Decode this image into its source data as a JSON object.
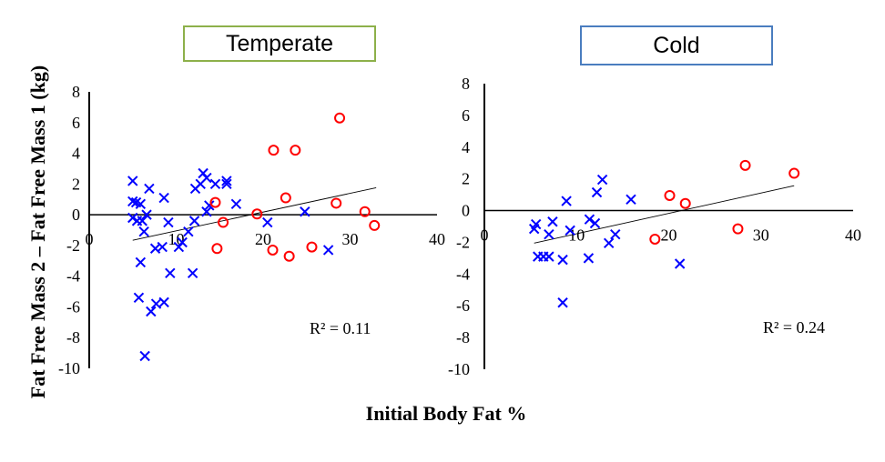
{
  "chart_data": {
    "type": "scatter",
    "ylabel": "Fat Free Mass 2 – Fat Free Mass 1 (kg)",
    "xlabel": "Initial Body Fat %",
    "colors": {
      "series_x": "#0000ff",
      "series_o": "#ff0000",
      "temperate_border": "#8db04a",
      "cold_border": "#4a7dbf"
    },
    "panels": [
      {
        "title": "Temperate",
        "xlim": [
          0,
          40
        ],
        "ylim": [
          -10,
          8
        ],
        "xticks": [
          0,
          10,
          20,
          30,
          40
        ],
        "yticks": [
          8,
          6,
          4,
          2,
          0,
          -2,
          -4,
          -6,
          -8,
          -10
        ],
        "r2_label": "R² = 0.11",
        "trendline": [
          [
            5.0,
            -1.66
          ],
          [
            33.0,
            1.76
          ]
        ],
        "series": [
          {
            "name": "x-markers",
            "marker": "x",
            "points": [
              [
                5.0,
                2.2
              ],
              [
                5.0,
                0.87
              ],
              [
                5.4,
                0.8
              ],
              [
                5.9,
                0.7
              ],
              [
                5.0,
                -0.2
              ],
              [
                5.5,
                -0.4
              ],
              [
                6.1,
                -0.4
              ],
              [
                6.6,
                0.0
              ],
              [
                6.9,
                1.7
              ],
              [
                6.3,
                -1.1
              ],
              [
                8.6,
                1.1
              ],
              [
                9.1,
                -0.5
              ],
              [
                5.9,
                -3.1
              ],
              [
                7.6,
                -2.2
              ],
              [
                8.4,
                -2.1
              ],
              [
                9.3,
                -3.8
              ],
              [
                10.3,
                -2.1
              ],
              [
                10.7,
                -1.8
              ],
              [
                11.4,
                -1.1
              ],
              [
                12.1,
                -0.4
              ],
              [
                11.9,
                -3.8
              ],
              [
                12.2,
                1.7
              ],
              [
                12.8,
                2.0
              ],
              [
                13.1,
                2.7
              ],
              [
                13.5,
                2.4
              ],
              [
                14.5,
                2.0
              ],
              [
                15.8,
                2.2
              ],
              [
                15.8,
                2.0
              ],
              [
                13.5,
                0.2
              ],
              [
                13.8,
                0.6
              ],
              [
                16.9,
                0.7
              ],
              [
                5.7,
                -5.4
              ],
              [
                7.1,
                -6.3
              ],
              [
                7.7,
                -5.8
              ],
              [
                8.6,
                -5.7
              ],
              [
                6.4,
                -9.2
              ],
              [
                20.5,
                -0.5
              ],
              [
                24.8,
                0.2
              ],
              [
                27.5,
                -2.3
              ]
            ]
          },
          {
            "name": "o-markers",
            "marker": "o",
            "points": [
              [
                28.8,
                6.3
              ],
              [
                21.2,
                4.2
              ],
              [
                23.7,
                4.2
              ],
              [
                22.6,
                1.1
              ],
              [
                28.4,
                0.75
              ],
              [
                31.7,
                0.2
              ],
              [
                32.8,
                -0.7
              ],
              [
                14.5,
                0.8
              ],
              [
                15.4,
                -0.5
              ],
              [
                14.7,
                -2.2
              ],
              [
                19.3,
                0.05
              ],
              [
                21.1,
                -2.3
              ],
              [
                23.0,
                -2.7
              ],
              [
                25.6,
                -2.1
              ]
            ]
          }
        ]
      },
      {
        "title": "Cold",
        "xlim": [
          0,
          40
        ],
        "ylim": [
          -10,
          8
        ],
        "xticks": [
          0,
          10,
          20,
          30,
          40
        ],
        "yticks": [
          8,
          6,
          4,
          2,
          0,
          -2,
          -4,
          -6,
          -8,
          -10
        ],
        "r2_label": "R² = 0.24",
        "trendline": [
          [
            5.4,
            -2.05
          ],
          [
            33.6,
            1.57
          ]
        ],
        "series": [
          {
            "name": "x-markers",
            "marker": "x",
            "points": [
              [
                5.6,
                -0.86
              ],
              [
                5.4,
                -1.15
              ],
              [
                5.8,
                -2.9
              ],
              [
                6.4,
                -2.9
              ],
              [
                7.0,
                -2.9
              ],
              [
                7.0,
                -1.5
              ],
              [
                7.4,
                -0.7
              ],
              [
                8.5,
                -3.1
              ],
              [
                8.5,
                -5.8
              ],
              [
                8.9,
                0.6
              ],
              [
                9.3,
                -1.25
              ],
              [
                11.3,
                -3.0
              ],
              [
                11.4,
                -0.55
              ],
              [
                12.0,
                -0.8
              ],
              [
                12.2,
                1.15
              ],
              [
                12.8,
                1.95
              ],
              [
                13.5,
                -2.05
              ],
              [
                14.2,
                -1.5
              ],
              [
                15.9,
                0.7
              ],
              [
                21.2,
                -3.35
              ]
            ]
          },
          {
            "name": "o-markers",
            "marker": "o",
            "points": [
              [
                28.3,
                2.85
              ],
              [
                33.6,
                2.35
              ],
              [
                20.1,
                0.95
              ],
              [
                21.8,
                0.45
              ],
              [
                18.5,
                -1.8
              ],
              [
                27.5,
                -1.15
              ]
            ]
          }
        ]
      }
    ]
  }
}
